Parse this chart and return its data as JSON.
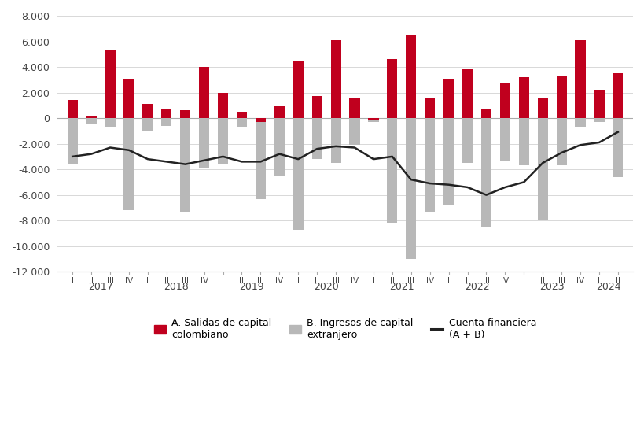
{
  "quarters": [
    "I",
    "II",
    "III",
    "IV",
    "I",
    "II",
    "III",
    "IV",
    "I",
    "II",
    "III",
    "IV",
    "I",
    "II",
    "III",
    "IV",
    "I",
    "II",
    "III",
    "IV",
    "I",
    "II",
    "III",
    "IV",
    "I",
    "II",
    "III",
    "IV",
    "I",
    "II"
  ],
  "years": [
    "2017",
    "2017",
    "2017",
    "2017",
    "2018",
    "2018",
    "2018",
    "2018",
    "2019",
    "2019",
    "2019",
    "2019",
    "2020",
    "2020",
    "2020",
    "2020",
    "2021",
    "2021",
    "2021",
    "2021",
    "2022",
    "2022",
    "2022",
    "2022",
    "2023",
    "2023",
    "2023",
    "2023",
    "2024",
    "2024"
  ],
  "salidas": [
    1400,
    100,
    5300,
    3100,
    1100,
    700,
    600,
    4000,
    2000,
    500,
    -300,
    900,
    4500,
    1700,
    6100,
    1600,
    -200,
    4600,
    6472,
    1600,
    3000,
    3800,
    700,
    2800,
    3200,
    1600,
    3300,
    6100,
    2200,
    3524
  ],
  "ingresos": [
    -3600,
    -500,
    -700,
    -7200,
    -1000,
    -600,
    -7300,
    -3900,
    -3600,
    -700,
    -6300,
    -4500,
    -8700,
    -3200,
    -3500,
    -2100,
    -300,
    -8200,
    -10976,
    -7400,
    -6800,
    -3500,
    -8500,
    -3300,
    -3700,
    -8000,
    -3700,
    -700,
    -300,
    -4608
  ],
  "cuenta_financiera": [
    -3000,
    -2800,
    -2300,
    -2500,
    -3200,
    -3400,
    -3600,
    -3300,
    -3000,
    -3400,
    -3400,
    -2800,
    -3200,
    -2400,
    -2200,
    -2300,
    -3200,
    -3000,
    -4800,
    -5100,
    -5200,
    -5400,
    -6000,
    -5400,
    -5000,
    -3500,
    -2700,
    -2100,
    -1900,
    -1084
  ],
  "year_labels": [
    "2017",
    "2018",
    "2019",
    "2020",
    "2021",
    "2022",
    "2023",
    "2024"
  ],
  "year_positions": [
    1.5,
    5.5,
    9.5,
    13.5,
    17.5,
    21.5,
    25.5,
    28.5
  ],
  "color_salidas": "#c0001e",
  "color_ingresos": "#b8b8b8",
  "color_cuenta": "#222222",
  "ylim": [
    -12000,
    8000
  ],
  "yticks": [
    -12000,
    -10000,
    -8000,
    -6000,
    -4000,
    -2000,
    0,
    2000,
    4000,
    6000,
    8000
  ],
  "background_color": "#ffffff",
  "grid_color": "#d8d8d8",
  "legend_labels": [
    "A. Salidas de capital\ncolombiano",
    "B. Ingresos de capital\nextranjero",
    "Cuenta financiera\n(A + B)"
  ]
}
